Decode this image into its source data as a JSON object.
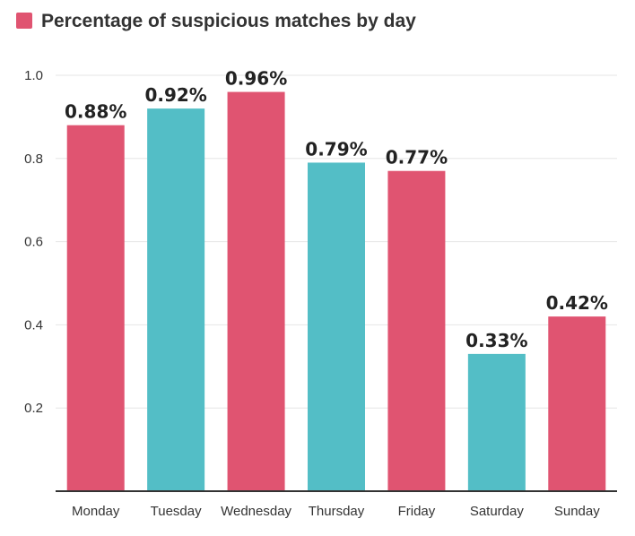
{
  "chart_data": {
    "type": "bar",
    "title": "Percentage of suspicious matches by day",
    "legend_position": "top-left",
    "categories": [
      "Monday",
      "Tuesday",
      "Wednesday",
      "Thursday",
      "Friday",
      "Saturday",
      "Sunday"
    ],
    "values": [
      0.88,
      0.92,
      0.96,
      0.79,
      0.77,
      0.33,
      0.42
    ],
    "data_labels": [
      "0.88%",
      "0.92%",
      "0.96%",
      "0.79%",
      "0.77%",
      "0.33%",
      "0.42%"
    ],
    "bar_colors": [
      "#e05471",
      "#53bec6",
      "#e05471",
      "#53bec6",
      "#e05471",
      "#53bec6",
      "#e05471"
    ],
    "legend_color": "#e05471",
    "yticks": [
      0.2,
      0.4,
      0.6,
      0.8,
      1.0
    ],
    "ytick_labels": [
      "0.2",
      "0.4",
      "0.6",
      "0.8",
      "1.0"
    ],
    "ylim": [
      0,
      1.0
    ],
    "grid": true,
    "xlabel": "",
    "ylabel": ""
  }
}
